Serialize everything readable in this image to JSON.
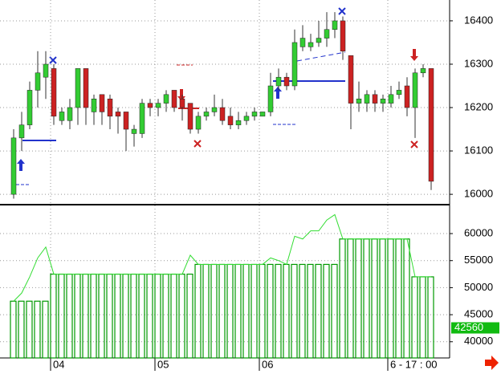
{
  "chart_data": [
    {
      "type": "candlestick",
      "categories": [
        null,
        null,
        null,
        null,
        null,
        "04",
        null,
        null,
        null,
        null,
        null,
        null,
        null,
        null,
        null,
        null,
        null,
        null,
        "05",
        null,
        null,
        null,
        null,
        null,
        null,
        null,
        null,
        null,
        null,
        null,
        null,
        "06",
        null,
        null,
        null,
        null,
        null,
        null,
        null,
        null,
        null,
        null,
        null,
        null,
        null,
        null,
        null,
        "6 - 17 : 00",
        null,
        null,
        null,
        null,
        null
      ],
      "open": [
        16000,
        16130,
        16160,
        16240,
        16270,
        16290,
        16170,
        16170,
        16200,
        16290,
        16190,
        16230,
        16220,
        16190,
        16190,
        16140,
        16140,
        16210,
        16200,
        16210,
        16240,
        16220,
        16210,
        16150,
        16180,
        16190,
        16200,
        16180,
        16160,
        16170,
        16180,
        16180,
        16190,
        16250,
        16270,
        16250,
        16340,
        16340,
        16350,
        16360,
        16380,
        16400,
        16320,
        16210,
        16210,
        16230,
        16210,
        16210,
        16230,
        16250,
        16200,
        16280,
        16290
      ],
      "high": [
        16150,
        16190,
        16260,
        16330,
        16330,
        16300,
        16200,
        16220,
        16290,
        16290,
        16230,
        16230,
        16230,
        16200,
        16190,
        16160,
        16220,
        16220,
        16220,
        16240,
        16240,
        16230,
        16210,
        16190,
        16200,
        16230,
        16220,
        16200,
        16190,
        16190,
        16200,
        16190,
        16280,
        16290,
        16280,
        16380,
        16390,
        16370,
        16400,
        16420,
        16420,
        16410,
        16320,
        16260,
        16240,
        16240,
        16230,
        16250,
        16260,
        16270,
        16290,
        16300,
        16290
      ],
      "low": [
        15990,
        16100,
        16150,
        16200,
        16220,
        16160,
        16160,
        16150,
        16160,
        16160,
        16160,
        16160,
        16150,
        16140,
        16100,
        16110,
        16130,
        16180,
        16180,
        16190,
        16190,
        16170,
        16140,
        16140,
        16170,
        16180,
        16160,
        16150,
        16150,
        16160,
        16170,
        16180,
        16180,
        16240,
        16240,
        16240,
        16330,
        16330,
        16340,
        16340,
        16360,
        16310,
        16150,
        16190,
        16190,
        16190,
        16190,
        16200,
        16220,
        16180,
        16130,
        16270,
        16010
      ],
      "close": [
        16130,
        16160,
        16240,
        16280,
        16300,
        16180,
        16190,
        16200,
        16290,
        16200,
        16220,
        16190,
        16180,
        16180,
        16150,
        16150,
        16210,
        16200,
        16210,
        16230,
        16200,
        16200,
        16150,
        16180,
        16190,
        16200,
        16170,
        16160,
        16170,
        16180,
        16190,
        16190,
        16250,
        16270,
        16250,
        16350,
        16360,
        16350,
        16360,
        16380,
        16400,
        16330,
        16210,
        16220,
        16230,
        16210,
        16220,
        16230,
        16240,
        16200,
        16280,
        16290,
        16030
      ],
      "up_color": "#33cc33",
      "down_color": "#cc2222",
      "ylim": [
        15978,
        16448
      ],
      "yticks": [
        16000,
        16100,
        16200,
        16300,
        16400
      ],
      "grid": true
    },
    {
      "type": "bar",
      "series": [
        {
          "type": "bar",
          "color": "#009900",
          "values": [
            47500,
            47500,
            47500,
            47500,
            47500,
            52500,
            52500,
            52500,
            52500,
            52500,
            52500,
            52500,
            52500,
            52500,
            52500,
            52500,
            52500,
            52500,
            52500,
            52500,
            52500,
            52500,
            52500,
            54300,
            54300,
            54300,
            54300,
            54300,
            54300,
            54300,
            54300,
            54300,
            54300,
            54300,
            54300,
            54300,
            54300,
            54300,
            54300,
            54300,
            54300,
            59000,
            59000,
            59000,
            59000,
            59000,
            59000,
            59000,
            59000,
            59000,
            52000,
            52000,
            52000
          ]
        },
        {
          "type": "line",
          "color": "#33dd33",
          "values": [
            47500,
            49000,
            52000,
            55500,
            57500,
            52500,
            52500,
            52500,
            52500,
            52500,
            52500,
            52500,
            52500,
            52500,
            52500,
            52500,
            52500,
            52500,
            52500,
            52500,
            52500,
            52500,
            56000,
            54300,
            54300,
            54300,
            54300,
            54300,
            54300,
            54300,
            54300,
            54300,
            55500,
            55000,
            54300,
            59500,
            59000,
            60500,
            60500,
            62500,
            63500,
            59000,
            59000,
            59000,
            59000,
            59000,
            59000,
            59000,
            59000,
            59000,
            52000,
            52000,
            52000
          ]
        }
      ],
      "last_value": 42560,
      "ylim": [
        37000,
        65200
      ],
      "yticks": [
        40000,
        45000,
        50000,
        55000,
        60000
      ],
      "grid": true
    }
  ]
}
